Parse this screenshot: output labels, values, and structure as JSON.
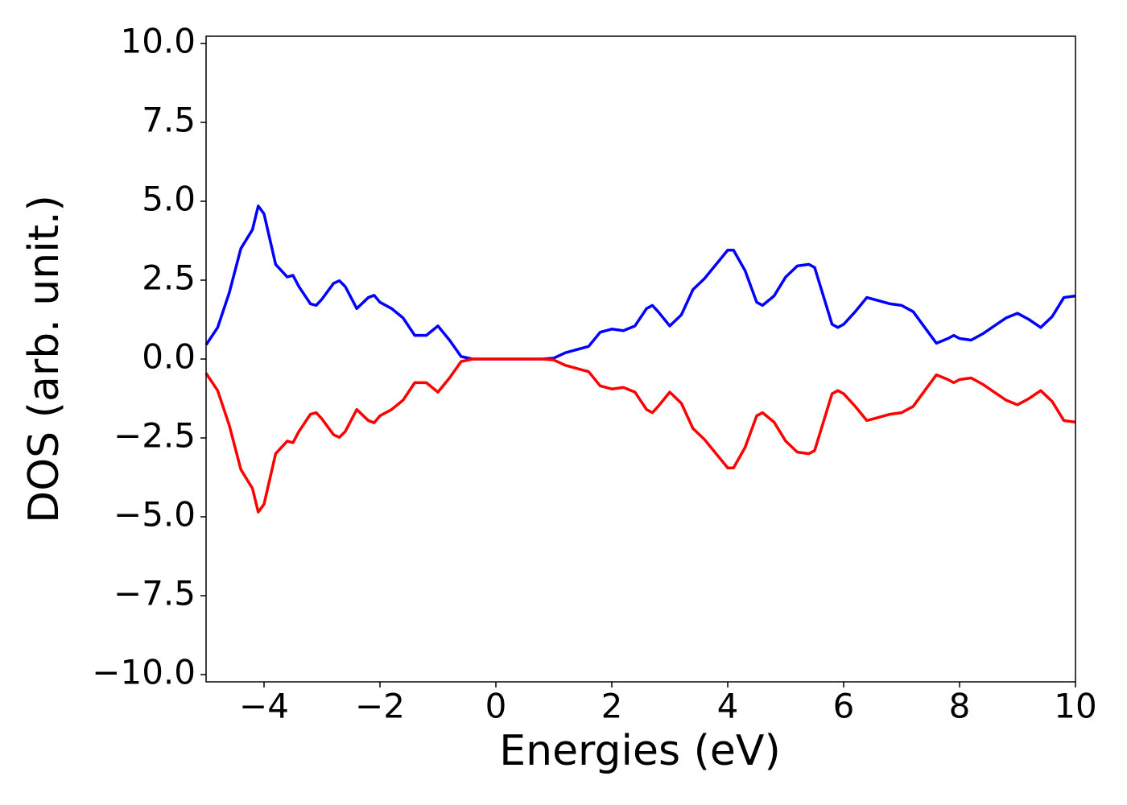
{
  "chart_data": {
    "type": "line",
    "xlabel": "Energies (eV)",
    "ylabel": "DOS (arb. unit.)",
    "x": [
      -5.0,
      -4.8,
      -4.6,
      -4.4,
      -4.2,
      -4.1,
      -4.0,
      -3.8,
      -3.6,
      -3.5,
      -3.4,
      -3.2,
      -3.1,
      -3.0,
      -2.8,
      -2.7,
      -2.6,
      -2.4,
      -2.2,
      -2.1,
      -2.0,
      -1.8,
      -1.6,
      -1.4,
      -1.2,
      -1.0,
      -0.8,
      -0.6,
      -0.4,
      0.0,
      0.8,
      1.0,
      1.2,
      1.4,
      1.6,
      1.8,
      2.0,
      2.2,
      2.4,
      2.6,
      2.7,
      2.8,
      3.0,
      3.2,
      3.4,
      3.6,
      3.8,
      4.0,
      4.1,
      4.3,
      4.5,
      4.6,
      4.8,
      5.0,
      5.2,
      5.4,
      5.5,
      5.6,
      5.8,
      5.9,
      6.0,
      6.2,
      6.4,
      6.6,
      6.8,
      7.0,
      7.2,
      7.4,
      7.6,
      7.8,
      7.9,
      8.0,
      8.2,
      8.4,
      8.6,
      8.8,
      9.0,
      9.2,
      9.4,
      9.6,
      9.8,
      10.0
    ],
    "series": [
      {
        "color": "#0000ff",
        "values": [
          0.45,
          1.0,
          2.1,
          3.5,
          4.1,
          4.85,
          4.6,
          3.0,
          2.6,
          2.65,
          2.3,
          1.75,
          1.7,
          1.9,
          2.4,
          2.48,
          2.3,
          1.6,
          1.95,
          2.02,
          1.8,
          1.6,
          1.3,
          0.75,
          0.75,
          1.05,
          0.6,
          0.08,
          0.0,
          0.0,
          0.0,
          0.03,
          0.2,
          0.3,
          0.4,
          0.85,
          0.95,
          0.9,
          1.05,
          1.6,
          1.7,
          1.5,
          1.05,
          1.4,
          2.2,
          2.55,
          3.0,
          3.45,
          3.45,
          2.8,
          1.8,
          1.7,
          2.0,
          2.6,
          2.95,
          3.0,
          2.9,
          2.3,
          1.1,
          1.0,
          1.1,
          1.5,
          1.95,
          1.85,
          1.75,
          1.7,
          1.5,
          1.0,
          0.5,
          0.65,
          0.75,
          0.65,
          0.6,
          0.8,
          1.05,
          1.3,
          1.45,
          1.25,
          1.0,
          1.35,
          1.95,
          2.0
        ]
      },
      {
        "color": "#ff0000",
        "values": [
          -0.45,
          -1.0,
          -2.1,
          -3.5,
          -4.1,
          -4.85,
          -4.6,
          -3.0,
          -2.6,
          -2.65,
          -2.3,
          -1.75,
          -1.7,
          -1.9,
          -2.4,
          -2.48,
          -2.3,
          -1.6,
          -1.95,
          -2.02,
          -1.8,
          -1.6,
          -1.3,
          -0.75,
          -0.75,
          -1.05,
          -0.6,
          -0.08,
          0.0,
          0.0,
          0.0,
          -0.03,
          -0.2,
          -0.3,
          -0.4,
          -0.85,
          -0.95,
          -0.9,
          -1.05,
          -1.6,
          -1.7,
          -1.5,
          -1.05,
          -1.4,
          -2.2,
          -2.55,
          -3.0,
          -3.45,
          -3.45,
          -2.8,
          -1.8,
          -1.7,
          -2.0,
          -2.6,
          -2.95,
          -3.0,
          -2.9,
          -2.3,
          -1.1,
          -1.0,
          -1.1,
          -1.5,
          -1.95,
          -1.85,
          -1.75,
          -1.7,
          -1.5,
          -1.0,
          -0.5,
          -0.65,
          -0.75,
          -0.65,
          -0.6,
          -0.8,
          -1.05,
          -1.3,
          -1.45,
          -1.25,
          -1.0,
          -1.35,
          -1.95,
          -2.0
        ]
      }
    ],
    "xlim": [
      -5,
      10
    ],
    "xticks": [
      {
        "value": -4,
        "label": "−4"
      },
      {
        "value": -2,
        "label": "−2"
      },
      0,
      2,
      4,
      6,
      8,
      10
    ],
    "ylim": [
      -10.23,
      10.23
    ],
    "yticks": [
      {
        "value": 10,
        "label": "10.0"
      },
      {
        "value": 7.5,
        "label": "7.5"
      },
      {
        "value": 5,
        "label": "5.0"
      },
      {
        "value": 2.5,
        "label": "2.5"
      },
      {
        "value": 0,
        "label": "0.0"
      },
      {
        "value": -2.5,
        "label": "−2.5"
      },
      {
        "value": -5,
        "label": "−5.0"
      },
      {
        "value": -7.5,
        "label": "−7.5"
      },
      {
        "value": -10,
        "label": "−10.0"
      }
    ],
    "grid": false
  }
}
